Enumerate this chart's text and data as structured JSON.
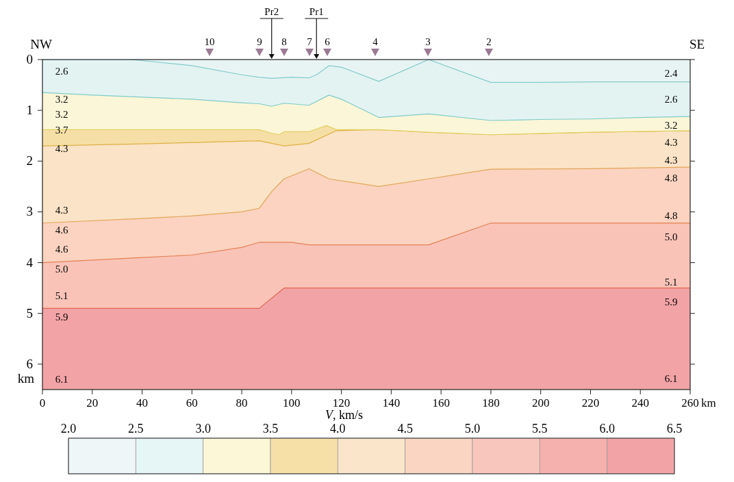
{
  "chart_data": {
    "type": "area",
    "xlabel": "km",
    "ylabel": "km",
    "clabel": "V, km/s",
    "xlim": [
      0,
      260
    ],
    "xticks": [
      0,
      20,
      40,
      60,
      80,
      100,
      120,
      140,
      160,
      180,
      200,
      220,
      240,
      260
    ],
    "ylim": [
      6.5,
      0
    ],
    "yticks": [
      0,
      1,
      2,
      3,
      4,
      5,
      6
    ],
    "clim": [
      2.0,
      6.5
    ],
    "cticks": [
      {
        "value": 2.0,
        "label": "2.0"
      },
      {
        "value": 2.5,
        "label": "2.5"
      },
      {
        "value": 3.0,
        "label": "3.0"
      },
      {
        "value": 3.5,
        "label": "3.5"
      },
      {
        "value": 4.0,
        "label": "4.0"
      },
      {
        "value": 4.5,
        "label": "4.5"
      },
      {
        "value": 5.0,
        "label": "5.0"
      },
      {
        "value": 5.5,
        "label": "5.5"
      },
      {
        "value": 6.0,
        "label": "6.0"
      },
      {
        "value": 6.5,
        "label": "6.5"
      }
    ],
    "colors": [
      "#eef6f8",
      "#e6f5f5",
      "#fbf7d7",
      "#f7e0a8",
      "#fae5cb",
      "#fad5c2",
      "#f9c6bd",
      "#f5b1ad",
      "#f2a3a6"
    ],
    "ref_lines": [
      {
        "axis": "x",
        "value": 92,
        "label": "Pr2"
      },
      {
        "axis": "x",
        "value": 110,
        "label": "Pr1"
      }
    ],
    "series": [
      {
        "color": "#e8f4f4",
        "x": [
          0,
          35,
          40,
          60,
          80,
          87,
          92,
          100,
          107,
          110,
          115,
          120,
          135,
          155,
          180,
          200,
          220,
          240,
          260
        ],
        "values": [
          0,
          0,
          0.02,
          0.12,
          0.3,
          0.35,
          0.37,
          0.35,
          0.36,
          0.3,
          0.12,
          0.15,
          0.43,
          0,
          0.45,
          0.45,
          0.44,
          0.44,
          0.44
        ]
      },
      {
        "color": "#e3f3f2",
        "x": [
          0,
          20,
          40,
          60,
          80,
          87,
          92,
          97,
          107,
          115,
          120,
          135,
          155,
          180,
          200,
          220,
          240,
          260
        ],
        "values": [
          0.65,
          0.7,
          0.74,
          0.78,
          0.85,
          0.87,
          0.92,
          0.86,
          0.9,
          0.7,
          0.78,
          1.14,
          1.07,
          1.2,
          1.18,
          1.17,
          1.14,
          1.12
        ]
      },
      {
        "color": "#fbf6d8",
        "x": [
          0,
          87,
          92,
          95,
          97,
          107,
          114,
          118,
          135,
          155,
          180,
          220,
          260
        ],
        "values": [
          1.38,
          1.38,
          1.45,
          1.48,
          1.42,
          1.42,
          1.3,
          1.38,
          1.38,
          1.43,
          1.48,
          1.43,
          1.4
        ]
      },
      {
        "color": "#f6dfa6",
        "x": [
          0,
          40,
          87,
          97,
          107,
          118,
          135,
          155,
          180,
          220,
          260
        ],
        "values": [
          1.7,
          1.66,
          1.6,
          1.7,
          1.65,
          1.4,
          1.38,
          1.43,
          1.48,
          1.43,
          1.4
        ]
      },
      {
        "color": "#fae3c6",
        "x": [
          0,
          40,
          60,
          80,
          87,
          92,
          97,
          107,
          115,
          135,
          155,
          180,
          220,
          260
        ],
        "values": [
          3.22,
          3.13,
          3.08,
          3.0,
          2.93,
          2.6,
          2.35,
          2.15,
          2.35,
          2.5,
          2.35,
          2.16,
          2.15,
          2.12
        ]
      },
      {
        "color": "#fbd3c0",
        "x": [
          0,
          40,
          60,
          80,
          87,
          100,
          107,
          135,
          155,
          180,
          220,
          260
        ],
        "values": [
          4.0,
          3.9,
          3.85,
          3.7,
          3.6,
          3.6,
          3.65,
          3.65,
          3.65,
          3.22,
          3.22,
          3.22
        ]
      },
      {
        "color": "#f9c3b8",
        "x": [
          0,
          87,
          97,
          260
        ],
        "values": [
          4.9,
          4.9,
          4.5,
          4.5
        ]
      }
    ],
    "annotations": [
      "NW",
      "SE",
      "10",
      "9",
      "8",
      "7",
      "6",
      "4",
      "3",
      "2",
      "2.6",
      "3.2",
      "3.2",
      "3.7",
      "4.3",
      "4.3",
      "4.6",
      "4.6",
      "5.0",
      "5.1",
      "5.9",
      "6.1",
      "2.4",
      "2.6",
      "3.2",
      "4.3",
      "4.3",
      "4.8",
      "4.8",
      "5.0",
      "5.1",
      "5.9",
      "6.1"
    ]
  }
}
